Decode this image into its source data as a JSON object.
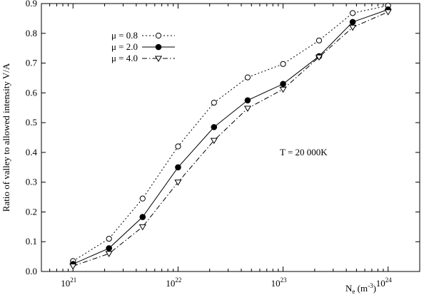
{
  "chart_data": {
    "type": "line",
    "x": [
      "1e21",
      "2.2e21",
      "4.6e21",
      "1e22",
      "2.2e22",
      "4.6e22",
      "1e23",
      "2.2e23",
      "4.6e23",
      "1e24"
    ],
    "x_values": [
      1e+21,
      2.2e+21,
      4.6e+21,
      1e+22,
      2.2e+22,
      4.6e+22,
      1e+23,
      2.2e+23,
      4.6e+23,
      1e+24
    ],
    "xscale": "log",
    "xlim": [
      5e+20,
      2e+24
    ],
    "ylim": [
      0,
      0.9
    ],
    "grid": false,
    "legend_position": "top-left",
    "xlabel": {
      "base": "N",
      "sub": "e",
      "unit_pre": " (m",
      "unit_sup": "-3",
      "unit_post": ")"
    },
    "ylabel": "Ratio of valley to allowed intensity V/A",
    "annotation": "T = 20 000K",
    "x_ticks": [
      {
        "value": 1e+21,
        "base": "10",
        "exp": "21"
      },
      {
        "value": 1e+22,
        "base": "10",
        "exp": "22"
      },
      {
        "value": 1e+23,
        "base": "10",
        "exp": "23"
      },
      {
        "value": 1e+24,
        "base": "10",
        "exp": "24"
      }
    ],
    "y_ticks": [
      {
        "value": 0,
        "label": "0.0"
      },
      {
        "value": 0.1,
        "label": "0.1"
      },
      {
        "value": 0.2,
        "label": "0.2"
      },
      {
        "value": 0.3,
        "label": "0.3"
      },
      {
        "value": 0.4,
        "label": "0.4"
      },
      {
        "value": 0.5,
        "label": "0.5"
      },
      {
        "value": 0.6,
        "label": "0.6"
      },
      {
        "value": 0.7,
        "label": "0.7"
      },
      {
        "value": 0.8,
        "label": "0.8"
      },
      {
        "value": 0.9,
        "label": "0.9"
      }
    ],
    "series": [
      {
        "name": "μ = 0.8",
        "marker": "open-circle",
        "line": "dotted",
        "values": [
          0.035,
          0.11,
          0.245,
          0.42,
          0.567,
          0.652,
          0.697,
          0.776,
          0.868,
          0.893
        ]
      },
      {
        "name": "μ = 2.0",
        "marker": "filled-circle",
        "line": "solid",
        "values": [
          0.025,
          0.078,
          0.183,
          0.35,
          0.485,
          0.575,
          0.63,
          0.723,
          0.838,
          0.88
        ]
      },
      {
        "name": "μ = 4.0",
        "marker": "open-triangle-down",
        "line": "dash-dot",
        "values": [
          0.018,
          0.06,
          0.15,
          0.3,
          0.44,
          0.548,
          0.612,
          0.72,
          0.82,
          0.872
        ]
      }
    ]
  }
}
